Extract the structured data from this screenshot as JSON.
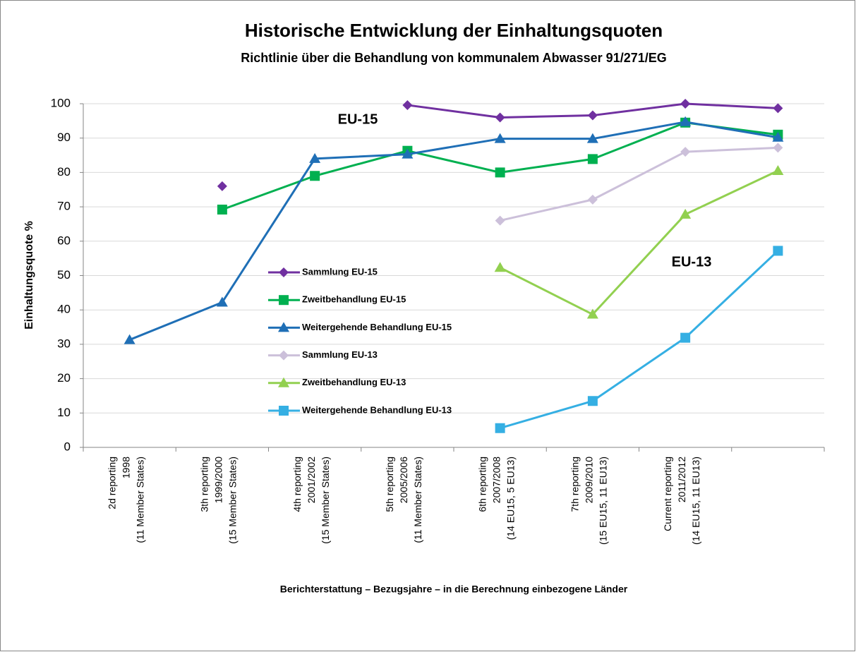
{
  "chart_data": {
    "type": "line",
    "title": "Historische Entwicklung der Einhaltungsquoten",
    "subtitle": "Richtlinie über die Behandlung von kommunalem Abwasser 91/271/EG",
    "y_label": "Einhaltungsquote %",
    "x_label": "Berichterstattung – Bezugsjahre – in die Berechnung einbezogene Länder",
    "annotations": [
      "EU-15",
      "EU-13"
    ],
    "categories": [
      [
        "2d reporting",
        "1998",
        "(11 Member States)"
      ],
      [
        "3th reporting",
        "1999/2000",
        "(15 Member States)"
      ],
      [
        "4th reporting",
        "2001/2002",
        "(15 Member States)"
      ],
      [
        "5th reporting",
        "2005/2006",
        "(11 Member States)"
      ],
      [
        "6th reporting",
        "2007/2008",
        "(14 EU15, 5 EU13)"
      ],
      [
        "7th reporting",
        "2009/2010",
        "(15 EU15, 11 EU13)"
      ],
      [
        "Current reporting",
        "2011/2012",
        "(14 EU15, 11 EU13)"
      ],
      null
    ],
    "series": [
      {
        "name": "Sammlung EU-15",
        "color": "#7030a0",
        "marker": "diamond",
        "values": [
          null,
          76,
          null,
          99.6,
          96,
          96.6,
          100,
          98.7
        ]
      },
      {
        "name": "Zweitbehandlung EU-15",
        "color": "#00b050",
        "marker": "square",
        "values": [
          null,
          69.2,
          79,
          86.3,
          80,
          83.9,
          94.5,
          91
        ]
      },
      {
        "name": "Weitergehende Behandlung EU-15",
        "color": "#1f6fb6",
        "marker": "triangle",
        "values": [
          31.3,
          42.2,
          84,
          85.3,
          89.8,
          89.8,
          94.7,
          90.2
        ]
      },
      {
        "name": "Sammlung EU-13",
        "color": "#ccc0da",
        "marker": "diamond",
        "values": [
          null,
          null,
          null,
          null,
          66,
          72.1,
          86,
          87.2
        ]
      },
      {
        "name": "Zweitbehandlung EU-13",
        "color": "#92d050",
        "marker": "triangle",
        "values": [
          null,
          null,
          null,
          null,
          52.3,
          38.7,
          67.8,
          80.5
        ]
      },
      {
        "name": "Weitergehende Behandlung EU-13",
        "color": "#35afe3",
        "marker": "square",
        "values": [
          null,
          null,
          null,
          null,
          5.6,
          13.5,
          31.9,
          57.2
        ]
      }
    ],
    "ylim": [
      0,
      100
    ],
    "yticks": [
      0,
      10,
      20,
      30,
      40,
      50,
      60,
      70,
      80,
      90,
      100
    ],
    "grid": true
  }
}
